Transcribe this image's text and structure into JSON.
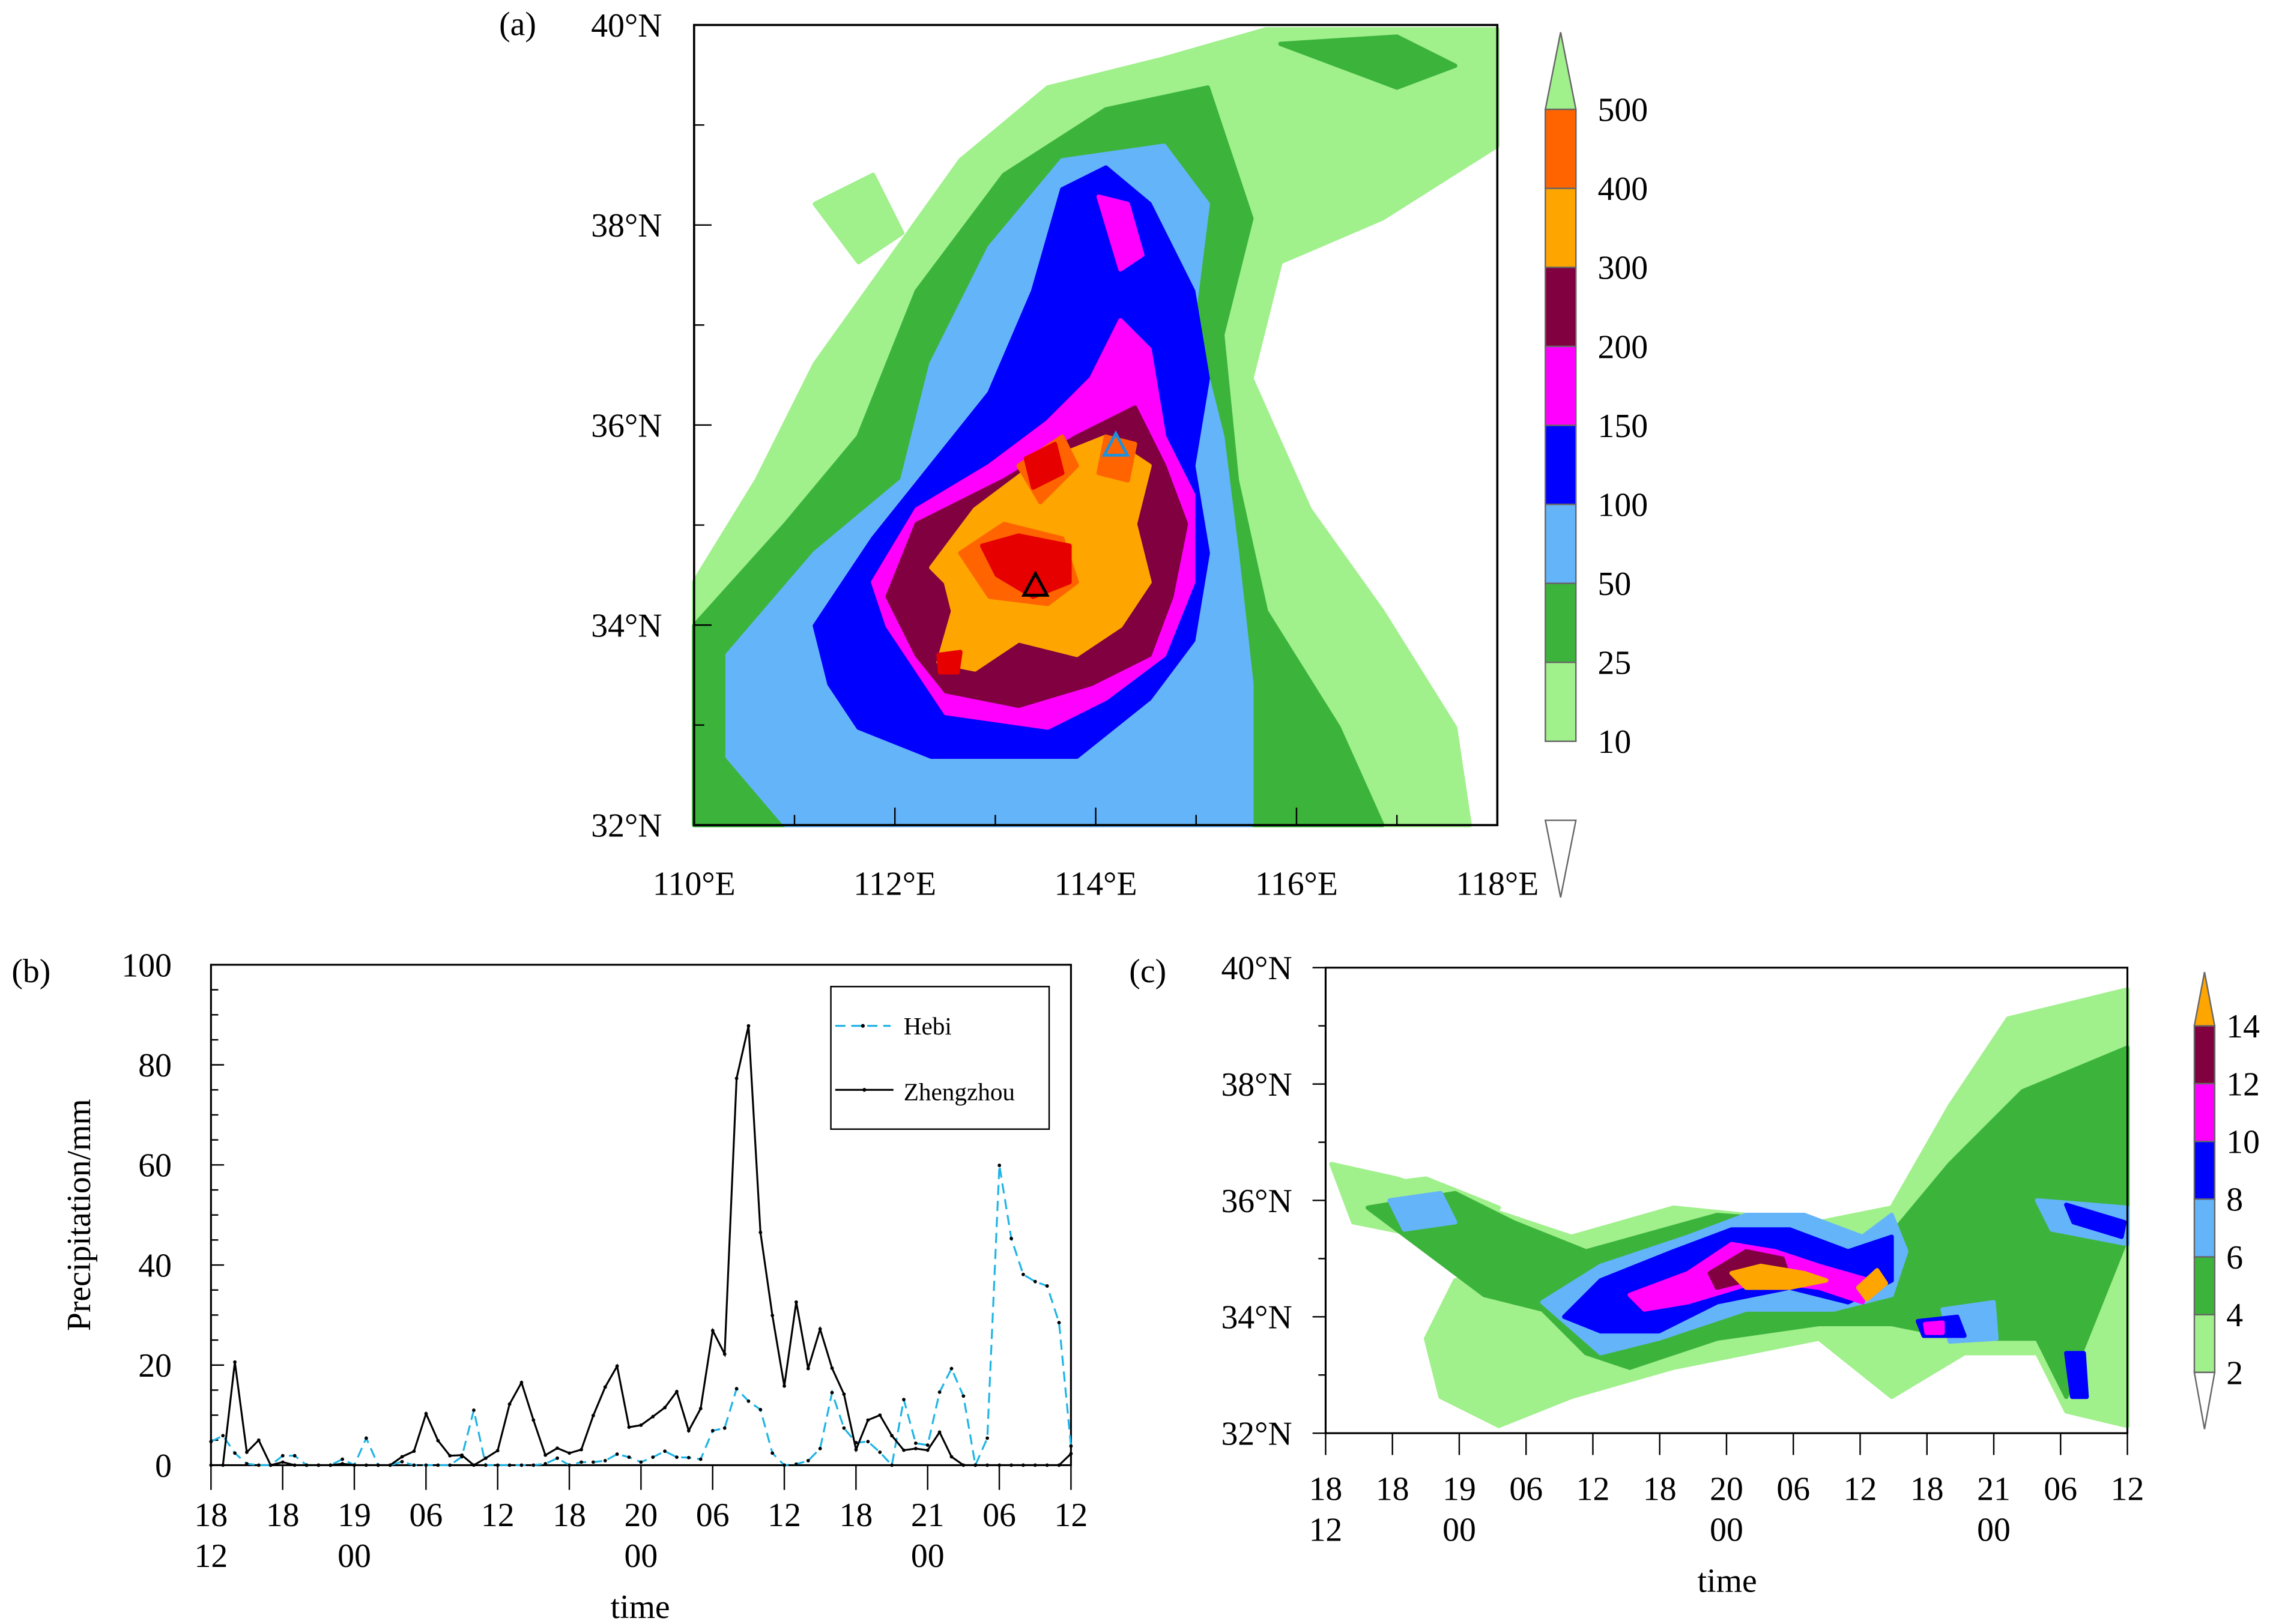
{
  "panel_a": {
    "label": "(a)",
    "lat_ticks": [
      "32°N",
      "34°N",
      "36°N",
      "38°N",
      "40°N"
    ],
    "lon_ticks": [
      "110°E",
      "112°E",
      "114°E",
      "116°E",
      "118°E"
    ],
    "colorbar": {
      "labels": [
        "10",
        "25",
        "50",
        "100",
        "150",
        "200",
        "300",
        "400",
        "500"
      ],
      "colors": [
        "#a0f08c",
        "#3cb43c",
        "#64b4fa",
        "#0000ff",
        "#ff00ff",
        "#800040",
        "#ffa500",
        "#ff6400",
        "#e60000"
      ],
      "below_color": "#ffffff"
    },
    "markers": [
      {
        "name": "Hebi",
        "lon": 114.2,
        "lat": 35.8,
        "color": "#1e90dc"
      },
      {
        "name": "Zhengzhou",
        "lon": 113.4,
        "lat": 34.4,
        "color": "#000000"
      }
    ]
  },
  "chart_data": [
    {
      "type": "line",
      "panel": "(b)",
      "xlabel": "time",
      "ylabel": "Precipitation/mm",
      "ylim": [
        0,
        100
      ],
      "yticks": [
        "0",
        "20",
        "40",
        "60",
        "80",
        "100"
      ],
      "xticks": [
        [
          "18",
          "12"
        ],
        [
          "18",
          ""
        ],
        [
          "19",
          "00"
        ],
        [
          "06",
          ""
        ],
        [
          "12",
          ""
        ],
        [
          "18",
          ""
        ],
        [
          "20",
          "00"
        ],
        [
          "06",
          ""
        ],
        [
          "12",
          ""
        ],
        [
          "18",
          ""
        ],
        [
          "21",
          "00"
        ],
        [
          "06",
          ""
        ],
        [
          "12",
          ""
        ]
      ],
      "x_unit": "hour from 18 12:00",
      "xlim": [
        0,
        72
      ],
      "legend_placement": "top-right",
      "series": [
        {
          "name": "Hebi",
          "color": "#1eb4e6",
          "dash": true,
          "values": [
            4.7,
            5.9,
            2.4,
            0.3,
            0,
            0,
            1.9,
            1.9,
            0,
            0,
            0,
            1.2,
            0,
            5.4,
            0,
            0,
            0.7,
            0,
            0,
            0,
            0,
            1.7,
            11,
            0,
            0,
            0,
            0,
            0,
            0.3,
            1.4,
            0,
            0.6,
            0.6,
            0.9,
            2.2,
            1.6,
            0.6,
            1.6,
            2.8,
            1.6,
            1.5,
            1.2,
            6.9,
            7.4,
            15.3,
            12.8,
            11.1,
            2.4,
            0,
            0.2,
            0.9,
            3.3,
            14.5,
            7.4,
            4.5,
            4.7,
            2.6,
            0,
            13.1,
            4.4,
            4,
            14.6,
            19.3,
            13.8,
            0,
            5.4,
            59.9,
            45.3,
            38.1,
            36.7,
            35.8,
            28.5,
            3.8
          ]
        },
        {
          "name": "Zhengzhou",
          "color": "#000000",
          "dash": false,
          "values": [
            0,
            0,
            20.6,
            2.6,
            5,
            0,
            0.6,
            0,
            0,
            0,
            0,
            0.3,
            0,
            0,
            0,
            0,
            1.7,
            2.8,
            10.3,
            4.9,
            1.9,
            2,
            0,
            1.4,
            2.9,
            12.2,
            16.5,
            9,
            2,
            3.4,
            2.4,
            3.1,
            9.9,
            15.6,
            19.8,
            7.6,
            8,
            9.7,
            11.5,
            14.7,
            6.9,
            11.3,
            26.9,
            22.2,
            77.3,
            87.8,
            46.5,
            29.9,
            15.8,
            32.6,
            19.3,
            27.2,
            19.4,
            14.2,
            3.1,
            9,
            10,
            5.9,
            3,
            3.3,
            3,
            6.6,
            1.7,
            0,
            0,
            0,
            0,
            0,
            0,
            0,
            0,
            0,
            2.3
          ]
        }
      ]
    },
    {
      "type": "heatmap",
      "panel": "(c)",
      "xlabel": "time",
      "ylabel": "",
      "yticks": [
        "32°N",
        "34°N",
        "36°N",
        "38°N",
        "40°N"
      ],
      "ylim": [
        32,
        40
      ],
      "xticks": [
        [
          "18",
          "12"
        ],
        [
          "18",
          ""
        ],
        [
          "19",
          "00"
        ],
        [
          "06",
          ""
        ],
        [
          "12",
          ""
        ],
        [
          "18",
          ""
        ],
        [
          "20",
          "00"
        ],
        [
          "06",
          ""
        ],
        [
          "12",
          ""
        ],
        [
          "18",
          ""
        ],
        [
          "21",
          "00"
        ],
        [
          "06",
          ""
        ],
        [
          "12",
          ""
        ]
      ],
      "colorbar": {
        "labels": [
          "2",
          "4",
          "6",
          "8",
          "10",
          "12",
          "14"
        ],
        "colors": [
          "#a0f08c",
          "#3cb43c",
          "#64b4fa",
          "#0000ff",
          "#ff00ff",
          "#800040",
          "#ffa500"
        ],
        "below_color": "#ffffff"
      }
    }
  ]
}
